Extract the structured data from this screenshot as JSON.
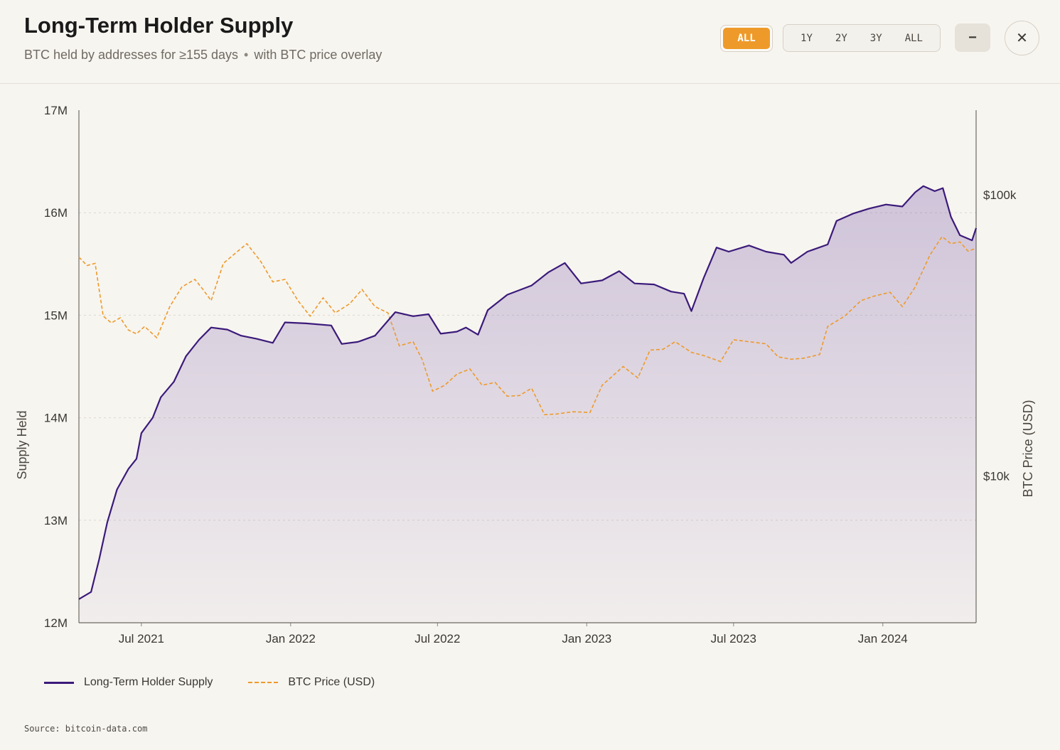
{
  "header": {
    "title": "Long-Term Holder Supply",
    "subtitle": "BTC held by addresses for ≥155 days",
    "subtitle_dot": "•",
    "subtitle_suffix": "with BTC price overlay",
    "active_range_label": "ALL",
    "ranges": [
      "1Y",
      "2Y",
      "3Y",
      "ALL"
    ],
    "minimize_label": "−",
    "close_label": "✕"
  },
  "legend": {
    "supply_label": "Long-Term Holder Supply",
    "price_label": "BTC Price (USD)"
  },
  "source": "Source: bitcoin-data.com",
  "colors": {
    "supply": "#3b1a7a",
    "fill": "#7a5aa8",
    "price": "#ee9a2a",
    "accent": "#ee9a2a"
  },
  "chart_data": {
    "type": "line",
    "title": "Long-Term Holder Supply",
    "ylabel": "Supply Held",
    "y2label": "BTC Price (USD)",
    "ylim": [
      12000000,
      17000000
    ],
    "y2lim": [
      3000,
      200000
    ],
    "y2scale": "log",
    "xlim": [
      "2021-04-15",
      "2024-04-25"
    ],
    "y_ticks": [
      {
        "value": 12000000,
        "label": "12M"
      },
      {
        "value": 13000000,
        "label": "13M"
      },
      {
        "value": 14000000,
        "label": "14M"
      },
      {
        "value": 15000000,
        "label": "15M"
      },
      {
        "value": 16000000,
        "label": "16M"
      },
      {
        "value": 17000000,
        "label": "17M"
      }
    ],
    "y2_ticks": [
      {
        "value": 10000,
        "label": "$10k"
      },
      {
        "value": 100000,
        "label": "$100k"
      }
    ],
    "x_ticks": [
      {
        "date": "2021-07-01",
        "label": "Jul 2021"
      },
      {
        "date": "2022-01-01",
        "label": "Jan 2022"
      },
      {
        "date": "2022-07-01",
        "label": "Jul 2022"
      },
      {
        "date": "2023-01-01",
        "label": "Jan 2023"
      },
      {
        "date": "2023-07-01",
        "label": "Jul 2023"
      },
      {
        "date": "2024-01-01",
        "label": "Jan 2024"
      }
    ],
    "grid": true,
    "legend_position": "bottom-left",
    "series": [
      {
        "name": "Long-Term Holder Supply",
        "axis": "left",
        "style": "solid-area",
        "points": [
          [
            "2021-04-15",
            12230000
          ],
          [
            "2021-04-30",
            12300000
          ],
          [
            "2021-05-10",
            12620000
          ],
          [
            "2021-05-20",
            12980000
          ],
          [
            "2021-06-01",
            13300000
          ],
          [
            "2021-06-15",
            13500000
          ],
          [
            "2021-06-25",
            13600000
          ],
          [
            "2021-07-01",
            13850000
          ],
          [
            "2021-07-15",
            14000000
          ],
          [
            "2021-07-25",
            14200000
          ],
          [
            "2021-08-10",
            14350000
          ],
          [
            "2021-08-25",
            14600000
          ],
          [
            "2021-09-10",
            14760000
          ],
          [
            "2021-09-25",
            14880000
          ],
          [
            "2021-10-15",
            14860000
          ],
          [
            "2021-11-01",
            14800000
          ],
          [
            "2021-11-20",
            14770000
          ],
          [
            "2021-12-10",
            14730000
          ],
          [
            "2021-12-25",
            14930000
          ],
          [
            "2022-01-20",
            14920000
          ],
          [
            "2022-02-20",
            14900000
          ],
          [
            "2022-03-05",
            14720000
          ],
          [
            "2022-03-25",
            14740000
          ],
          [
            "2022-04-15",
            14800000
          ],
          [
            "2022-05-10",
            15030000
          ],
          [
            "2022-06-01",
            14990000
          ],
          [
            "2022-06-20",
            15010000
          ],
          [
            "2022-07-05",
            14820000
          ],
          [
            "2022-07-25",
            14840000
          ],
          [
            "2022-08-05",
            14880000
          ],
          [
            "2022-08-20",
            14810000
          ],
          [
            "2022-09-01",
            15050000
          ],
          [
            "2022-09-25",
            15200000
          ],
          [
            "2022-10-25",
            15290000
          ],
          [
            "2022-11-15",
            15420000
          ],
          [
            "2022-12-05",
            15510000
          ],
          [
            "2022-12-25",
            15310000
          ],
          [
            "2023-01-20",
            15340000
          ],
          [
            "2023-02-10",
            15430000
          ],
          [
            "2023-03-01",
            15310000
          ],
          [
            "2023-03-25",
            15300000
          ],
          [
            "2023-04-15",
            15230000
          ],
          [
            "2023-05-01",
            15210000
          ],
          [
            "2023-05-10",
            15040000
          ],
          [
            "2023-05-25",
            15360000
          ],
          [
            "2023-06-10",
            15660000
          ],
          [
            "2023-06-25",
            15620000
          ],
          [
            "2023-07-20",
            15680000
          ],
          [
            "2023-08-10",
            15620000
          ],
          [
            "2023-09-01",
            15590000
          ],
          [
            "2023-09-10",
            15510000
          ],
          [
            "2023-09-30",
            15620000
          ],
          [
            "2023-10-25",
            15690000
          ],
          [
            "2023-11-05",
            15920000
          ],
          [
            "2023-11-25",
            15990000
          ],
          [
            "2023-12-15",
            16040000
          ],
          [
            "2024-01-05",
            16080000
          ],
          [
            "2024-01-25",
            16060000
          ],
          [
            "2024-02-10",
            16200000
          ],
          [
            "2024-02-20",
            16260000
          ],
          [
            "2024-03-05",
            16210000
          ],
          [
            "2024-03-15",
            16240000
          ],
          [
            "2024-03-25",
            15960000
          ],
          [
            "2024-04-05",
            15780000
          ],
          [
            "2024-04-20",
            15730000
          ],
          [
            "2024-04-25",
            15850000
          ]
        ]
      },
      {
        "name": "BTC Price (USD)",
        "axis": "right",
        "style": "dashed",
        "points": [
          [
            "2021-04-15",
            60000
          ],
          [
            "2021-04-25",
            56000
          ],
          [
            "2021-05-05",
            57000
          ],
          [
            "2021-05-15",
            37000
          ],
          [
            "2021-05-25",
            35000
          ],
          [
            "2021-06-05",
            36500
          ],
          [
            "2021-06-15",
            33000
          ],
          [
            "2021-06-25",
            32000
          ],
          [
            "2021-07-05",
            34000
          ],
          [
            "2021-07-20",
            31000
          ],
          [
            "2021-08-05",
            40000
          ],
          [
            "2021-08-20",
            47000
          ],
          [
            "2021-09-05",
            50000
          ],
          [
            "2021-09-15",
            46000
          ],
          [
            "2021-09-25",
            42000
          ],
          [
            "2021-10-10",
            57000
          ],
          [
            "2021-10-25",
            62000
          ],
          [
            "2021-11-08",
            67000
          ],
          [
            "2021-11-25",
            58000
          ],
          [
            "2021-12-10",
            49000
          ],
          [
            "2021-12-25",
            50000
          ],
          [
            "2022-01-10",
            42000
          ],
          [
            "2022-01-25",
            37000
          ],
          [
            "2022-02-10",
            43000
          ],
          [
            "2022-02-25",
            38000
          ],
          [
            "2022-03-15",
            41000
          ],
          [
            "2022-03-30",
            46000
          ],
          [
            "2022-04-15",
            40000
          ],
          [
            "2022-05-01",
            38000
          ],
          [
            "2022-05-15",
            29000
          ],
          [
            "2022-06-01",
            30000
          ],
          [
            "2022-06-12",
            26000
          ],
          [
            "2022-06-25",
            20000
          ],
          [
            "2022-07-10",
            21000
          ],
          [
            "2022-07-25",
            23000
          ],
          [
            "2022-08-10",
            24000
          ],
          [
            "2022-08-25",
            21000
          ],
          [
            "2022-09-10",
            21500
          ],
          [
            "2022-09-25",
            19200
          ],
          [
            "2022-10-10",
            19300
          ],
          [
            "2022-10-25",
            20500
          ],
          [
            "2022-11-10",
            16500
          ],
          [
            "2022-11-25",
            16600
          ],
          [
            "2022-12-15",
            16900
          ],
          [
            "2023-01-05",
            16800
          ],
          [
            "2023-01-20",
            21000
          ],
          [
            "2023-02-15",
            24500
          ],
          [
            "2023-03-05",
            22300
          ],
          [
            "2023-03-20",
            28000
          ],
          [
            "2023-04-05",
            28200
          ],
          [
            "2023-04-20",
            30000
          ],
          [
            "2023-05-10",
            27500
          ],
          [
            "2023-05-25",
            26800
          ],
          [
            "2023-06-15",
            25500
          ],
          [
            "2023-07-01",
            30500
          ],
          [
            "2023-07-20",
            30000
          ],
          [
            "2023-08-10",
            29500
          ],
          [
            "2023-08-25",
            26500
          ],
          [
            "2023-09-10",
            26000
          ],
          [
            "2023-09-25",
            26200
          ],
          [
            "2023-10-15",
            27000
          ],
          [
            "2023-10-25",
            34000
          ],
          [
            "2023-11-15",
            37000
          ],
          [
            "2023-12-05",
            42000
          ],
          [
            "2023-12-20",
            43500
          ],
          [
            "2024-01-10",
            45000
          ],
          [
            "2024-01-25",
            40000
          ],
          [
            "2024-02-10",
            47000
          ],
          [
            "2024-02-28",
            61000
          ],
          [
            "2024-03-14",
            71000
          ],
          [
            "2024-03-25",
            67000
          ],
          [
            "2024-04-05",
            68000
          ],
          [
            "2024-04-15",
            63000
          ],
          [
            "2024-04-25",
            64500
          ]
        ]
      }
    ]
  }
}
